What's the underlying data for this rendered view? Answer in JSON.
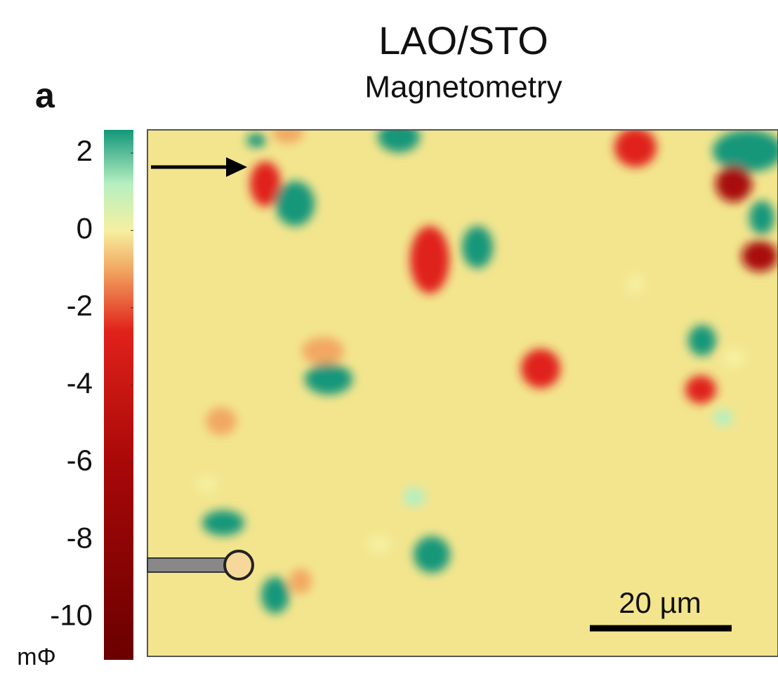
{
  "chart_data": {
    "type": "colormap-image",
    "panel_label": "a",
    "title": "LAO/STO",
    "subtitle": "Magnetometry",
    "colorbar": {
      "unit": "mΦ",
      "lim": [
        -11.1,
        2.6
      ],
      "ticks": [
        2,
        0,
        -2,
        -4,
        -6,
        -8,
        -10
      ],
      "stops": [
        {
          "value": 2.6,
          "color": "#12977a"
        },
        {
          "value": 1.2,
          "color": "#b6efc0"
        },
        {
          "value": 0,
          "color": "#f6f0a0"
        },
        {
          "value": -1,
          "color": "#f2a862"
        },
        {
          "value": -2.6,
          "color": "#e0221a"
        },
        {
          "value": -6,
          "color": "#a80808"
        },
        {
          "value": -11.1,
          "color": "#6a0000"
        }
      ]
    },
    "scale_bar": "20 µm"
  }
}
